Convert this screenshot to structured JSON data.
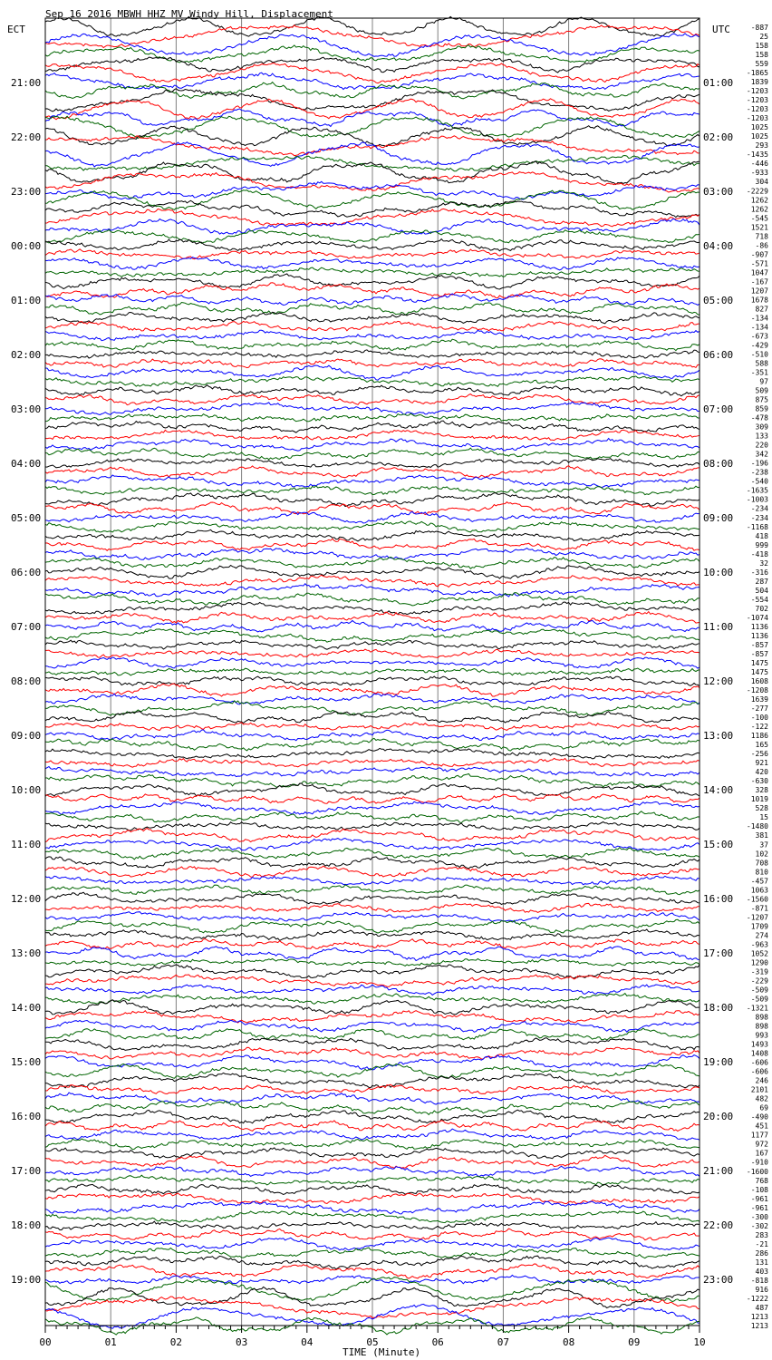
{
  "chart_data": {
    "type": "line",
    "title": "Sep 16 2016 MBWH HHZ MV Windy Hill, Displacement",
    "xlabel": "TIME (Minute)",
    "left_axis_label": "ECT",
    "right_axis_label": "UTC",
    "x_ticks": [
      "00",
      "01",
      "02",
      "03",
      "04",
      "05",
      "06",
      "07",
      "08",
      "09",
      "10"
    ],
    "xlim": [
      0,
      10
    ],
    "grid": "vertical lines at each minute",
    "left_hours": [
      "21:00",
      "22:00",
      "23:00",
      "00:00",
      "01:00",
      "02:00",
      "03:00",
      "04:00",
      "05:00",
      "06:00",
      "07:00",
      "08:00",
      "09:00",
      "10:00",
      "11:00",
      "12:00",
      "13:00",
      "14:00",
      "15:00",
      "16:00",
      "17:00",
      "18:00",
      "19:00"
    ],
    "right_hours": [
      "01:00",
      "02:00",
      "03:00",
      "04:00",
      "05:00",
      "06:00",
      "07:00",
      "08:00",
      "09:00",
      "10:00",
      "11:00",
      "12:00",
      "13:00",
      "14:00",
      "15:00",
      "16:00",
      "17:00",
      "18:00",
      "19:00",
      "20:00",
      "21:00",
      "22:00",
      "23:00"
    ],
    "trace_colors": [
      "#000000",
      "#ff0000",
      "#0000ff",
      "#006400"
    ],
    "trace_values": [
      "-887",
      "25",
      "158",
      "158",
      "559",
      "-1865",
      "1839",
      "-1203",
      "-1203",
      "-1203",
      "-1203",
      "1025",
      "1025",
      "293",
      "-1435",
      "-446",
      "-933",
      "304",
      "-2229",
      "1262",
      "1262",
      "-545",
      "1521",
      "718",
      "-86",
      "-907",
      "-571",
      "1047",
      "-167",
      "1207",
      "1678",
      "827",
      "-134",
      "-134",
      "-673",
      "-429",
      "-510",
      "588",
      "-351",
      "97",
      "509",
      "875",
      "859",
      "-478",
      "309",
      "133",
      "220",
      "342",
      "-196",
      "-238",
      "-540",
      "-1635",
      "-1003",
      "-234",
      "-234",
      "-1168",
      "418",
      "999",
      "-418",
      "32",
      "-316",
      "287",
      "504",
      "-554",
      "702",
      "-1074",
      "1136",
      "1136",
      "-857",
      "-857",
      "1475",
      "1475",
      "1608",
      "-1208",
      "1639",
      "-277",
      "-100",
      "-122",
      "1186",
      "165",
      "-256",
      "921",
      "420",
      "-630",
      "328",
      "1019",
      "528",
      "15",
      "-1480",
      "381",
      "37",
      "102",
      "708",
      "810",
      "-457",
      "1063",
      "-1560",
      "-871",
      "-1207",
      "1709",
      "274",
      "-963",
      "1052",
      "1290",
      "-319",
      "-229",
      "-509",
      "-509",
      "-1321",
      "898",
      "898",
      "993",
      "1493",
      "1408",
      "-606",
      "-606",
      "246",
      "2101",
      "482",
      "69",
      "-490",
      "451",
      "1177",
      "972",
      "167",
      "-910",
      "-1600",
      "768",
      "-108",
      "-961",
      "-961",
      "-300",
      "-302",
      "283",
      "-21",
      "286",
      "131",
      "403",
      "-818",
      "916",
      "-1222",
      "487",
      "1213",
      "1213"
    ]
  }
}
